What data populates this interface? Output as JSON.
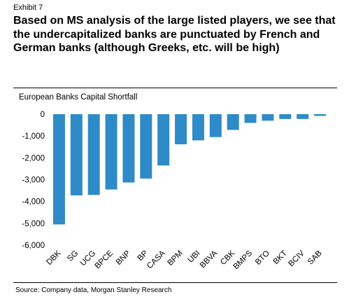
{
  "header": {
    "exhibit": "Exhibit 7",
    "headline": "Based on MS analysis of the large listed players, we see that the undercapitalized banks are punctuated by French and German banks (although Greeks, etc. will be high)"
  },
  "footer": {
    "source": "Source: Company data, Morgan Stanley Research"
  },
  "colors": {
    "bar": "#2E8BC8",
    "rule": "#000000"
  },
  "chart_data": {
    "type": "bar",
    "title": "European Banks Capital Shortfall",
    "xlabel": "",
    "ylabel": "",
    "categories": [
      "DBK",
      "SG",
      "UCG",
      "BPCE",
      "BNP",
      "BP",
      "CASA",
      "BPM",
      "UBI",
      "BBVA",
      "CBK",
      "BMPS",
      "BTO",
      "BKT",
      "BCIV",
      "SAB"
    ],
    "values": [
      -5050,
      -3720,
      -3700,
      -3450,
      -3130,
      -2950,
      -2350,
      -1380,
      -1200,
      -1050,
      -720,
      -400,
      -300,
      -220,
      -220,
      -80
    ],
    "ylim": [
      -6000,
      0
    ],
    "yticks": [
      0,
      -1000,
      -2000,
      -3000,
      -4000,
      -5000,
      -6000
    ],
    "ytick_labels": [
      "0",
      "-1,000",
      "-2,000",
      "-3,000",
      "-4,000",
      "-5,000",
      "-6,000"
    ],
    "grid": false,
    "legend": "none"
  }
}
